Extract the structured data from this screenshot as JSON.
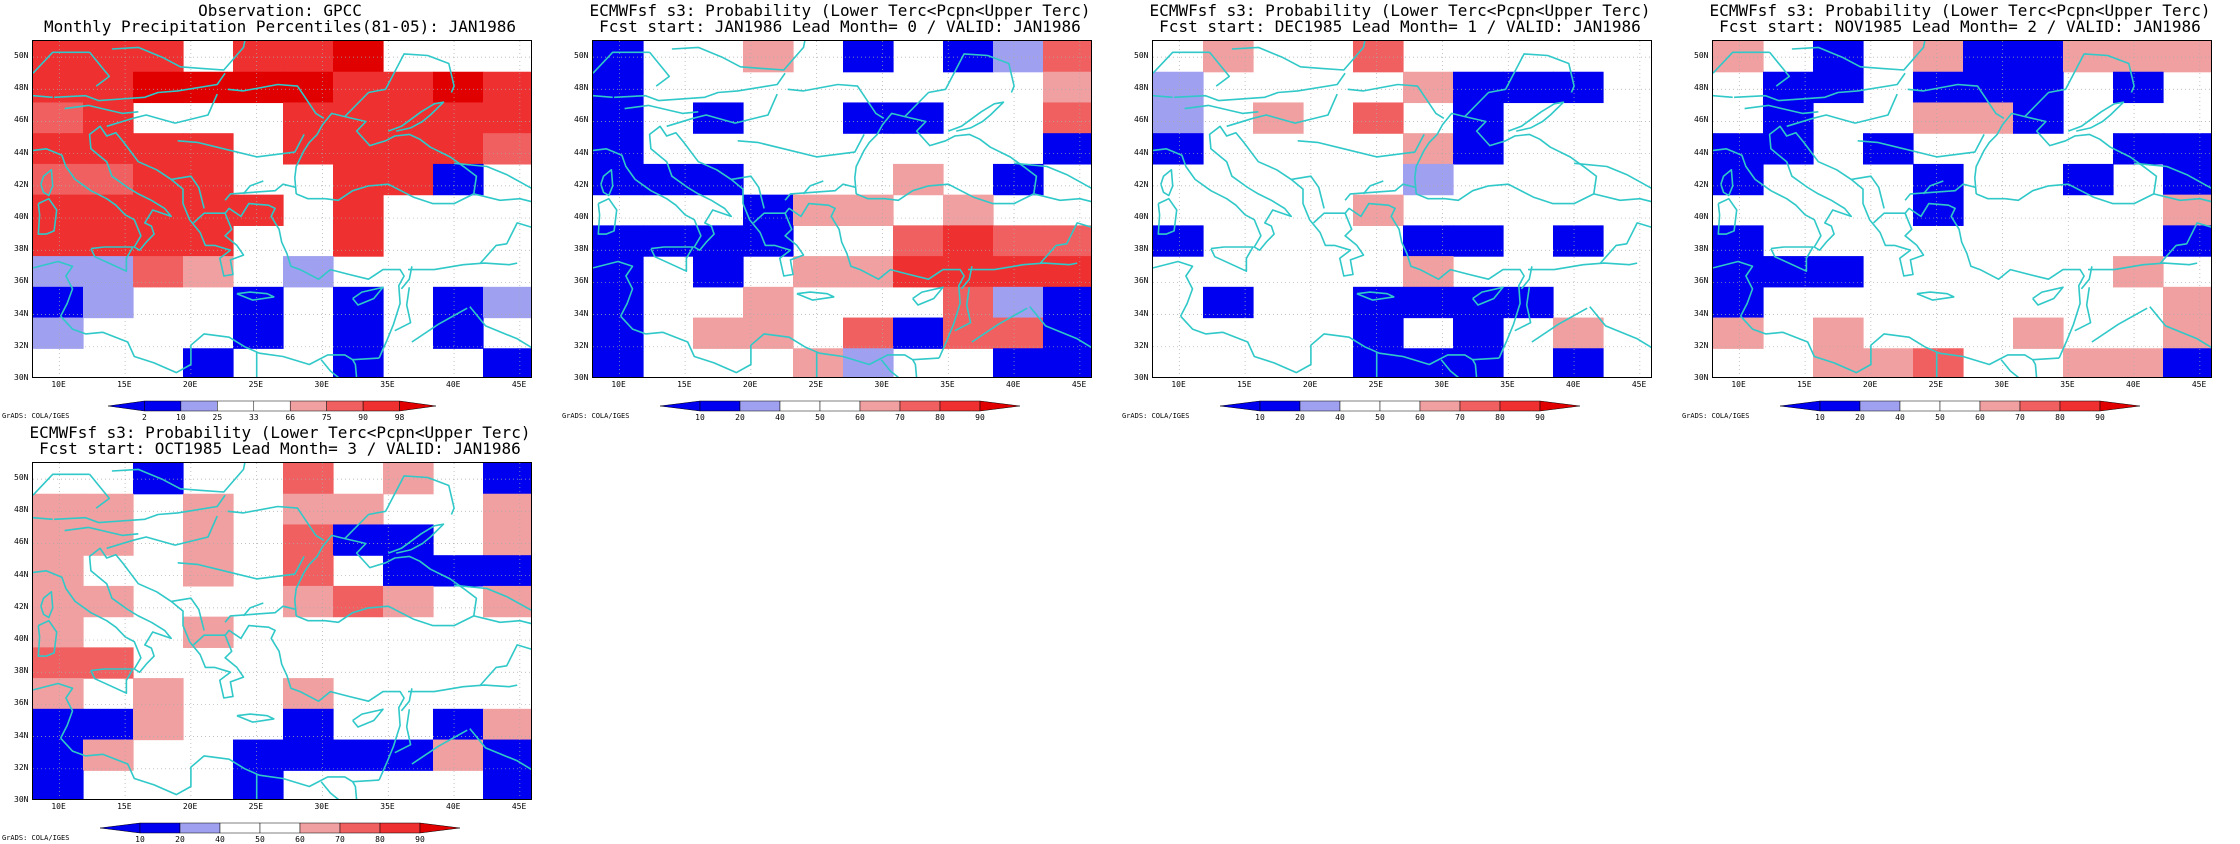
{
  "panels": [
    {
      "id": "obs",
      "title1": "Observation: GPCC",
      "title2": "Monthly Precipitation Percentiles(81-05): JAN1986",
      "cb_kind": "obs",
      "grid": [
        "5550556000",
        "5566665565",
        "4500055555",
        "5555055554",
        "4455005510",
        "5555505000",
        "5555005000",
        "2243020000",
        "1200101012",
        "2000101010",
        "0001001001"
      ]
    },
    {
      "id": "lead0",
      "title1": "ECMWFsf s3: Probability (Lower Terc<Pcpn<Upper Terc)",
      "title2": "Fcst start: JAN1986  Lead Month= 0 / VALID: JAN1986",
      "cb_kind": "prob",
      "grid": [
        "1003010124",
        "1000000003",
        "1010011004",
        "1000000001",
        "1110003010",
        "0001330300",
        "1111004544",
        "1010335555",
        "1003000421",
        "1033041441",
        "1000320011"
      ]
    },
    {
      "id": "lead1",
      "title1": "ECMWFsf s3: Probability (Lower Terc<Pcpn<Upper Terc)",
      "title2": "Fcst start: DEC1985  Lead Month= 1 / VALID: JAN1986",
      "cb_kind": "prob",
      "grid": [
        "0300400000",
        "2000031110",
        "2030401000",
        "1000031000",
        "0000020000",
        "0000300000",
        "1000011010",
        "0000030000",
        "0100111100",
        "0000101030",
        "0000111010"
      ]
    },
    {
      "id": "lead2",
      "title1": "ECMWFsf s3: Probability (Lower Terc<Pcpn<Upper Terc)",
      "title2": "Fcst start: NOV1985  Lead Month= 2 / VALID: JAN1986",
      "cb_kind": "prob",
      "grid": [
        "3010311333",
        "0110111010",
        "0100331000",
        "1101000011",
        "1000100101",
        "0000100003",
        "1000000001",
        "1110000030",
        "1000000003",
        "3030003003",
        "0033400331"
      ]
    },
    {
      "id": "lead3",
      "title1": "ECMWFsf s3: Probability (Lower Terc<Pcpn<Upper Terc)",
      "title2": "Fcst start: OCT1985  Lead Month= 3 / VALID: JAN1986",
      "cb_kind": "prob",
      "grid": [
        "0010040301",
        "3303033003",
        "3303041103",
        "3003040111",
        "3300034303",
        "3003000000",
        "4400000000",
        "3030030000",
        "1130010013",
        "1300111131",
        "1000100001"
      ]
    }
  ],
  "lat_labels": [
    "50N",
    "48N",
    "46N",
    "44N",
    "42N",
    "40N",
    "38N",
    "36N",
    "34N",
    "32N",
    "30N"
  ],
  "lon_labels": [
    "10E",
    "15E",
    "20E",
    "25E",
    "30E",
    "35E",
    "40E",
    "45E"
  ],
  "colorbar_obs": [
    "2",
    "10",
    "25",
    "33",
    "66",
    "75",
    "90",
    "98"
  ],
  "colorbar_prob": [
    "10",
    "20",
    "40",
    "50",
    "60",
    "70",
    "80",
    "90"
  ],
  "credit": "GrADS: COLA/IGES",
  "colors": {
    "level_1": "#0000f0",
    "level_2": "#a0a0f0",
    "level_3": "#f0a0a0",
    "level_4": "#f06060",
    "level_5": "#ee3030",
    "level_6": "#e00000",
    "coastline": "#30c8c8",
    "grid": "#aaaaaa"
  }
}
